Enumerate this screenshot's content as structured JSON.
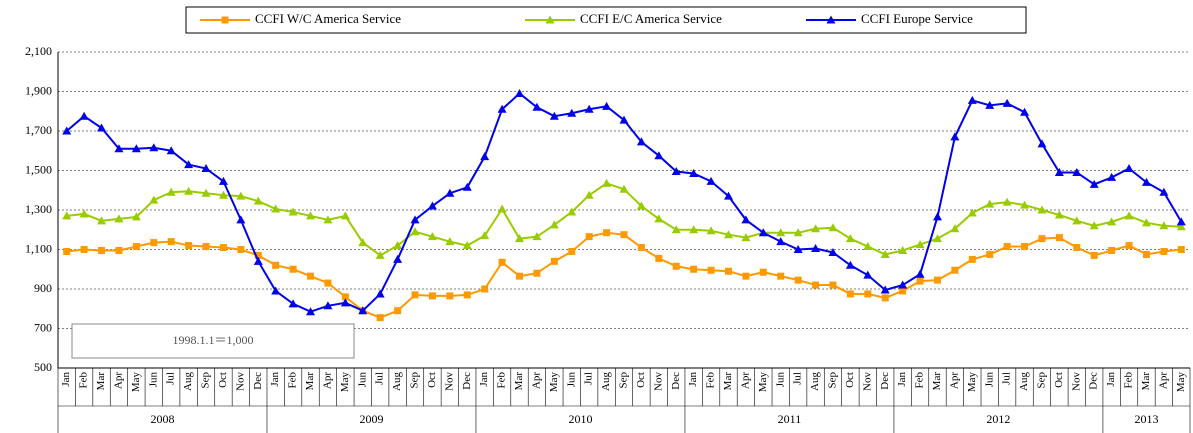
{
  "chart_data": {
    "type": "line",
    "categories": [
      "Jan",
      "Feb",
      "Mar",
      "Apr",
      "May",
      "Jun",
      "Jul",
      "Aug",
      "Sep",
      "Oct",
      "Nov",
      "Dec",
      "Jan",
      "Feb",
      "Mar",
      "Apr",
      "May",
      "Jun",
      "Jul",
      "Aug",
      "Sep",
      "Oct",
      "Nov",
      "Dec",
      "Jan",
      "Feb",
      "Mar",
      "Apr",
      "May",
      "Jun",
      "Jul",
      "Aug",
      "Sep",
      "Oct",
      "Nov",
      "Dec",
      "Jan",
      "Feb",
      "Mar",
      "Apr",
      "May",
      "Jun",
      "Jul",
      "Aug",
      "Sep",
      "Oct",
      "Nov",
      "Dec",
      "Jan",
      "Feb",
      "Mar",
      "Apr",
      "May",
      "Jun",
      "Jul",
      "Aug",
      "Sep",
      "Oct",
      "Nov",
      "Dec",
      "Jan",
      "Feb",
      "Mar",
      "Apr",
      "May"
    ],
    "groups": [
      "2008",
      "2009",
      "2010",
      "2011",
      "2012",
      "2013"
    ],
    "series": [
      {
        "name": "CCFI W/C America Service",
        "color": "#ff9900",
        "marker": "square",
        "values": [
          1090,
          1100,
          1095,
          1095,
          1115,
          1135,
          1140,
          1120,
          1115,
          1110,
          1100,
          1070,
          1020,
          1000,
          965,
          930,
          860,
          790,
          755,
          790,
          870,
          865,
          865,
          870,
          900,
          1035,
          965,
          980,
          1040,
          1090,
          1165,
          1185,
          1175,
          1110,
          1055,
          1015,
          1000,
          995,
          990,
          965,
          985,
          965,
          945,
          920,
          920,
          875,
          875,
          855,
          890,
          940,
          945,
          995,
          1050,
          1075,
          1115,
          1115,
          1155,
          1160,
          1110,
          1070,
          1095,
          1120,
          1075,
          1090,
          1100
        ]
      },
      {
        "name": "CCFI E/C America Service",
        "color": "#99cc00",
        "marker": "triangle",
        "values": [
          1270,
          1280,
          1245,
          1255,
          1265,
          1350,
          1390,
          1395,
          1385,
          1375,
          1370,
          1345,
          1305,
          1290,
          1270,
          1250,
          1270,
          1135,
          1070,
          1120,
          1190,
          1165,
          1140,
          1120,
          1170,
          1305,
          1155,
          1165,
          1225,
          1290,
          1375,
          1435,
          1405,
          1320,
          1255,
          1200,
          1200,
          1195,
          1175,
          1160,
          1185,
          1185,
          1185,
          1205,
          1210,
          1155,
          1115,
          1075,
          1095,
          1125,
          1155,
          1205,
          1285,
          1330,
          1340,
          1325,
          1300,
          1275,
          1245,
          1220,
          1240,
          1270,
          1235,
          1220,
          1215
        ]
      },
      {
        "name": "CCFI Europe Service",
        "color": "#0000ee",
        "marker": "triangle",
        "values": [
          1700,
          1775,
          1715,
          1610,
          1610,
          1615,
          1600,
          1530,
          1510,
          1445,
          1250,
          1040,
          890,
          825,
          785,
          815,
          830,
          790,
          875,
          1050,
          1250,
          1320,
          1385,
          1415,
          1570,
          1810,
          1890,
          1820,
          1775,
          1790,
          1810,
          1825,
          1755,
          1645,
          1575,
          1495,
          1485,
          1445,
          1370,
          1250,
          1185,
          1140,
          1100,
          1105,
          1085,
          1020,
          970,
          895,
          920,
          975,
          1265,
          1670,
          1855,
          1830,
          1840,
          1795,
          1635,
          1490,
          1490,
          1430,
          1465,
          1510,
          1440,
          1390,
          1240
        ]
      }
    ],
    "ylim": [
      500,
      2100
    ],
    "yticks": [
      500,
      700,
      900,
      {
        "value": 1100,
        "label": "1,100"
      },
      {
        "value": 1300,
        "label": "1,300"
      },
      {
        "value": 1500,
        "label": "1,500"
      },
      {
        "value": 1700,
        "label": "1,700"
      },
      {
        "value": 1900,
        "label": "1,900"
      },
      {
        "value": 2100,
        "label": "2,100"
      }
    ],
    "annotation": "1998.1.1＝1,000",
    "grid": true
  }
}
